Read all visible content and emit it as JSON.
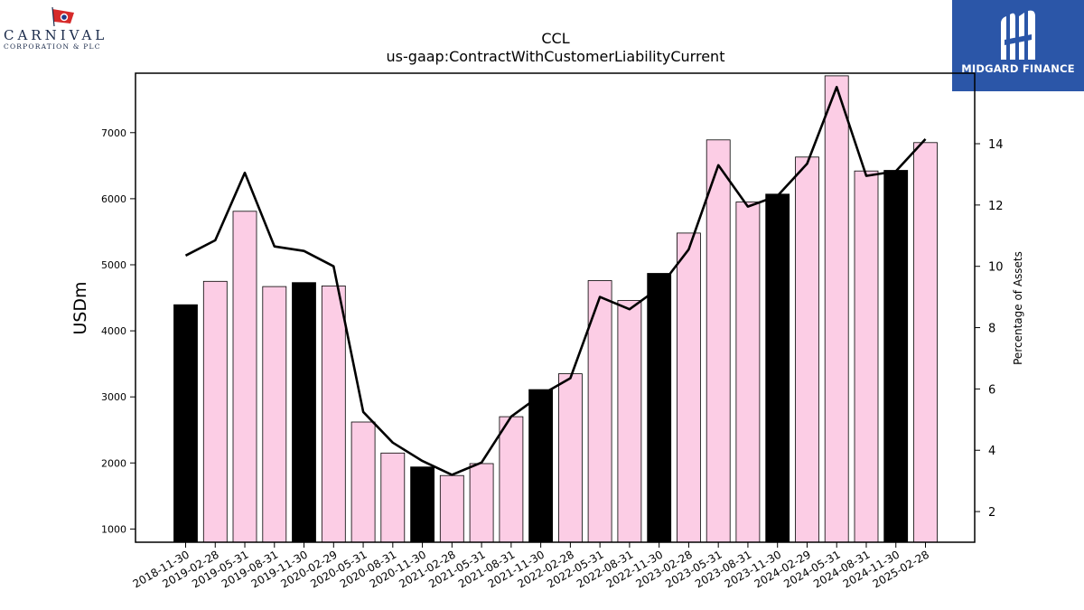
{
  "logos": {
    "left_brand": "CARNIVAL",
    "left_sub": "CORPORATION & PLC",
    "right_brand": "MIDGARD FINANCE"
  },
  "colors": {
    "bar_highlight": "#000000",
    "bar_normal": "#fccde5",
    "line": "#000000",
    "logo_right_bg": "#2b56a8"
  },
  "chart_data": {
    "type": "bar",
    "title": "CCL",
    "subtitle": "us-gaap:ContractWithCustomerLiabilityCurrent",
    "ylabel": "USDm",
    "y2label": "Percentage of Assets",
    "ylim": [
      800,
      7900
    ],
    "y2lim": [
      1.0,
      16.3
    ],
    "yticks": [
      1000,
      2000,
      3000,
      4000,
      5000,
      6000,
      7000
    ],
    "y2ticks": [
      2,
      4,
      6,
      8,
      10,
      12,
      14
    ],
    "categories": [
      "2018-11-30",
      "2019-02-28",
      "2019-05-31",
      "2019-08-31",
      "2019-11-30",
      "2020-02-29",
      "2020-05-31",
      "2020-08-31",
      "2020-11-30",
      "2021-02-28",
      "2021-05-31",
      "2021-08-31",
      "2021-11-30",
      "2022-02-28",
      "2022-05-31",
      "2022-08-31",
      "2022-11-30",
      "2023-02-28",
      "2023-05-31",
      "2023-08-31",
      "2023-11-30",
      "2024-02-29",
      "2024-05-31",
      "2024-08-31",
      "2024-11-30",
      "2025-02-28"
    ],
    "series": [
      {
        "type": "bar",
        "values": [
          4395,
          4750,
          5810,
          4670,
          4730,
          4680,
          2620,
          2150,
          1940,
          1810,
          1990,
          2700,
          3110,
          3350,
          4760,
          4460,
          4870,
          5480,
          6890,
          5950,
          6070,
          6630,
          7860,
          6420,
          6430,
          6850
        ],
        "highlight": [
          true,
          false,
          false,
          false,
          true,
          false,
          false,
          false,
          true,
          false,
          false,
          false,
          true,
          false,
          false,
          false,
          true,
          false,
          false,
          false,
          true,
          false,
          false,
          false,
          true,
          false
        ]
      },
      {
        "type": "line",
        "axis": "y2",
        "values": [
          10.35,
          10.85,
          13.05,
          10.65,
          10.5,
          10.0,
          5.25,
          4.25,
          3.65,
          3.2,
          3.6,
          5.1,
          5.8,
          6.35,
          9.0,
          8.6,
          9.3,
          10.55,
          13.3,
          11.95,
          12.3,
          13.35,
          15.85,
          12.95,
          13.1,
          14.15
        ]
      }
    ],
    "grid": false,
    "legend": "none"
  }
}
